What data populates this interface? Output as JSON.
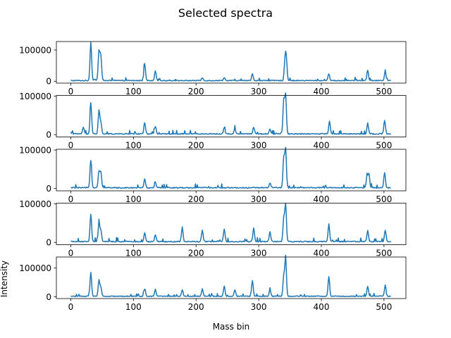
{
  "figure": {
    "title": "Selected spectra",
    "xlabel": "Mass bin",
    "ylabel": "Intensity"
  },
  "colors": {
    "line": "#1f77b4"
  },
  "chart_data": [
    {
      "type": "line",
      "title": "Selected spectra",
      "xlabel": "",
      "ylabel": "",
      "xlim": [
        -23,
        535
      ],
      "ylim": [
        -6000,
        127000
      ],
      "xticks": [
        0,
        100,
        200,
        300,
        400,
        500
      ],
      "yticks": [
        0,
        100000
      ],
      "grid": false,
      "peaks": [
        [
          32,
          124000
        ],
        [
          38,
          5000
        ],
        [
          45,
          95000
        ],
        [
          48,
          78000
        ],
        [
          118,
          55000
        ],
        [
          135,
          32000
        ],
        [
          210,
          9000
        ],
        [
          245,
          10000
        ],
        [
          290,
          22000
        ],
        [
          342,
          60000
        ],
        [
          344,
          68000
        ],
        [
          412,
          22000
        ],
        [
          474,
          32000
        ],
        [
          502,
          30000
        ]
      ]
    },
    {
      "type": "line",
      "xlabel": "",
      "ylabel": "",
      "xlim": [
        -23,
        535
      ],
      "ylim": [
        -6000,
        102000
      ],
      "xticks": [
        0,
        100,
        200,
        300,
        400,
        500
      ],
      "yticks": [
        0,
        100000
      ],
      "grid": false,
      "peaks": [
        [
          20,
          17000
        ],
        [
          32,
          80000
        ],
        [
          45,
          60000
        ],
        [
          48,
          30000
        ],
        [
          118,
          30000
        ],
        [
          135,
          20000
        ],
        [
          245,
          15000
        ],
        [
          262,
          14000
        ],
        [
          292,
          18000
        ],
        [
          318,
          13000
        ],
        [
          340,
          88000
        ],
        [
          343,
          100000
        ],
        [
          413,
          33000
        ],
        [
          474,
          28000
        ],
        [
          501,
          36000
        ]
      ]
    },
    {
      "type": "line",
      "xlabel": "",
      "ylabel": "",
      "xlim": [
        -23,
        535
      ],
      "ylim": [
        -6000,
        102000
      ],
      "xticks": [
        0,
        100,
        200,
        300,
        400,
        500
      ],
      "yticks": [
        0,
        100000
      ],
      "grid": false,
      "peaks": [
        [
          32,
          72000
        ],
        [
          45,
          42000
        ],
        [
          48,
          40000
        ],
        [
          118,
          22000
        ],
        [
          135,
          14000
        ],
        [
          318,
          13000
        ],
        [
          340,
          78000
        ],
        [
          343,
          100000
        ],
        [
          473,
          32000
        ],
        [
          476,
          36000
        ],
        [
          501,
          40000
        ]
      ]
    },
    {
      "type": "line",
      "xlabel": "",
      "ylabel": "",
      "xlim": [
        -23,
        535
      ],
      "ylim": [
        -6000,
        102000
      ],
      "xticks": [
        0,
        100,
        200,
        300,
        400,
        500
      ],
      "yticks": [
        0,
        100000
      ],
      "grid": false,
      "peaks": [
        [
          32,
          72000
        ],
        [
          45,
          50000
        ],
        [
          48,
          28000
        ],
        [
          118,
          22000
        ],
        [
          135,
          18000
        ],
        [
          178,
          37000
        ],
        [
          210,
          30000
        ],
        [
          245,
          33000
        ],
        [
          292,
          35000
        ],
        [
          318,
          25000
        ],
        [
          340,
          60000
        ],
        [
          343,
          97000
        ],
        [
          412,
          45000
        ],
        [
          474,
          28000
        ],
        [
          502,
          30000
        ]
      ]
    },
    {
      "type": "line",
      "xlabel": "Mass bin",
      "ylabel": "Intensity",
      "xlim": [
        -23,
        535
      ],
      "ylim": [
        -6000,
        138000
      ],
      "xticks": [
        0,
        100,
        200,
        300,
        400,
        500
      ],
      "yticks": [
        0,
        100000
      ],
      "grid": false,
      "peaks": [
        [
          32,
          82000
        ],
        [
          45,
          55000
        ],
        [
          48,
          30000
        ],
        [
          118,
          25000
        ],
        [
          135,
          22000
        ],
        [
          178,
          22000
        ],
        [
          210,
          25000
        ],
        [
          245,
          35000
        ],
        [
          262,
          22000
        ],
        [
          290,
          55000
        ],
        [
          318,
          22000
        ],
        [
          340,
          70000
        ],
        [
          343,
          132000
        ],
        [
          412,
          68000
        ],
        [
          474,
          35000
        ],
        [
          502,
          38000
        ]
      ]
    }
  ]
}
